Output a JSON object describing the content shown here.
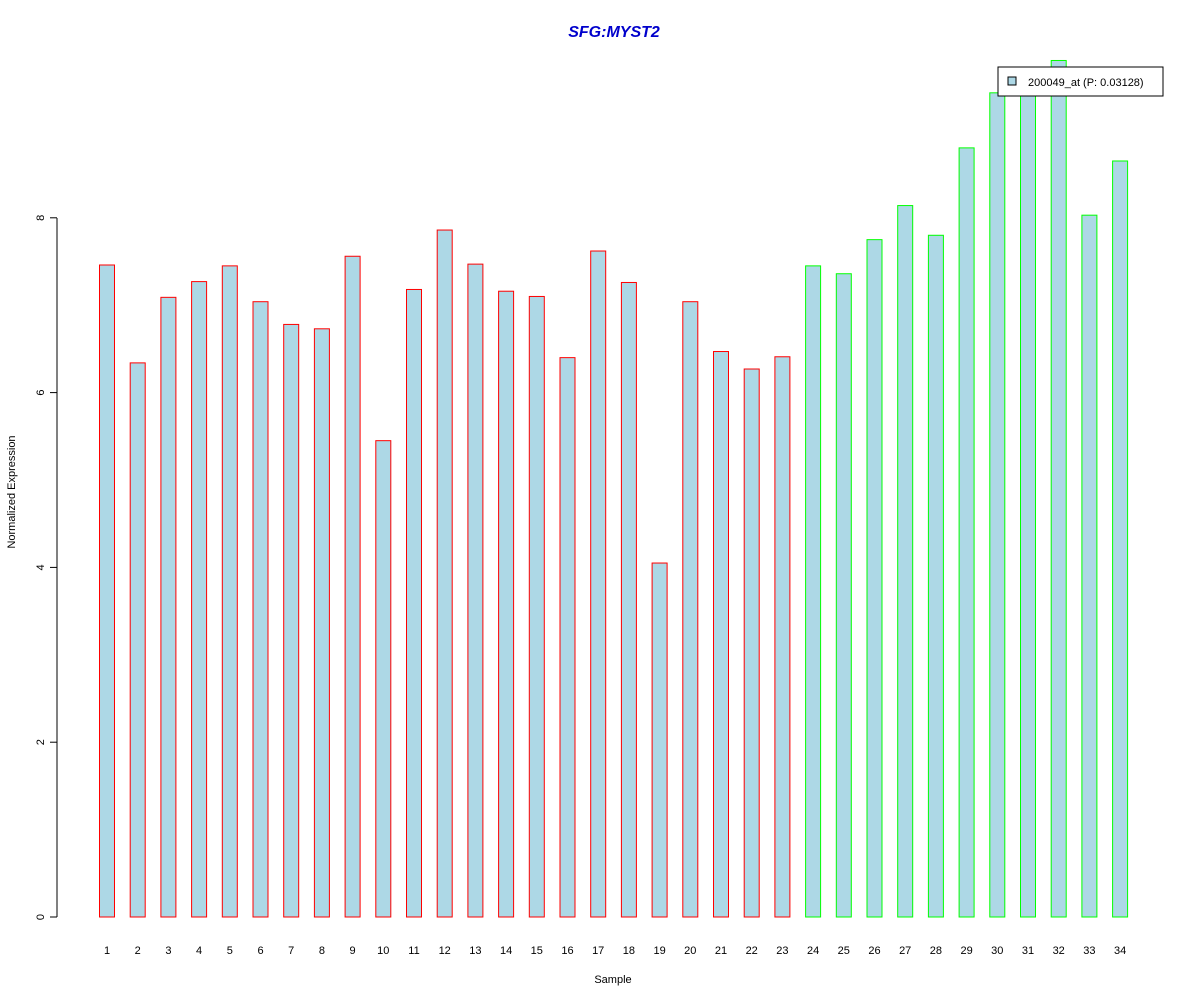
{
  "chart_data": {
    "type": "bar",
    "title": "SFG:MYST2",
    "xlabel": "Sample",
    "ylabel": "Normalized Expression",
    "ylim": [
      0,
      10
    ],
    "y_ticks": [
      0,
      2,
      4,
      6,
      8
    ],
    "categories": [
      "1",
      "2",
      "3",
      "4",
      "5",
      "6",
      "7",
      "8",
      "9",
      "10",
      "11",
      "12",
      "13",
      "14",
      "15",
      "16",
      "17",
      "18",
      "19",
      "20",
      "21",
      "22",
      "23",
      "24",
      "25",
      "26",
      "27",
      "28",
      "29",
      "30",
      "31",
      "32",
      "33",
      "34"
    ],
    "series": [
      {
        "name": "200049_at (P: 0.03128)",
        "values": [
          7.46,
          6.34,
          7.09,
          7.27,
          7.45,
          7.04,
          6.78,
          6.73,
          7.56,
          5.45,
          7.18,
          7.86,
          7.47,
          7.16,
          7.1,
          6.4,
          7.62,
          7.26,
          4.05,
          7.04,
          6.47,
          6.27,
          6.41,
          7.45,
          7.36,
          7.75,
          8.14,
          7.8,
          8.8,
          9.43,
          9.5,
          9.8,
          8.03,
          8.65
        ],
        "fill_color": "#ADD8E6"
      }
    ],
    "groups": [
      {
        "range": [
          1,
          23
        ],
        "border_color": "#FF0000"
      },
      {
        "range": [
          24,
          34
        ],
        "border_color": "#00FF00"
      }
    ],
    "title_color": "#0000CC",
    "legend": {
      "label": "200049_at (P: 0.03128)",
      "position": "top-right"
    },
    "grid": false
  }
}
